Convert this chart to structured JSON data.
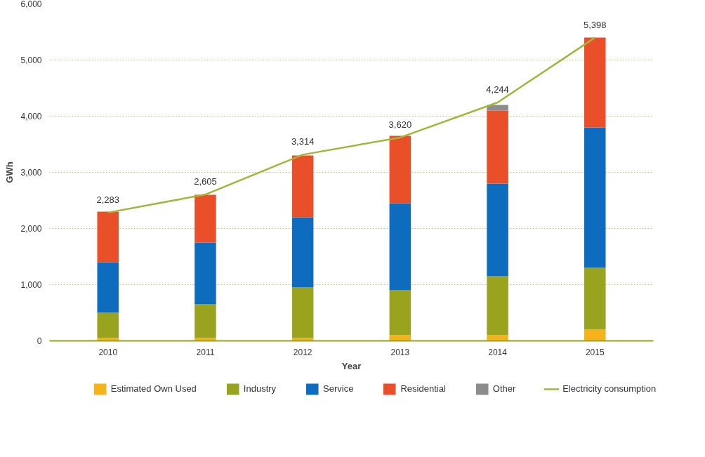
{
  "chart_data": {
    "type": "bar",
    "stacked": true,
    "xlabel": "Year",
    "ylabel": "GWh",
    "categories": [
      "2010",
      "2011",
      "2012",
      "2013",
      "2014",
      "2015"
    ],
    "series": [
      {
        "name": "Estimated Own Used",
        "color": "#f5b21a",
        "values": [
          50,
          50,
          50,
          100,
          100,
          200
        ]
      },
      {
        "name": "Industry",
        "color": "#9aa31d",
        "values": [
          450,
          600,
          900,
          800,
          1050,
          1100
        ]
      },
      {
        "name": "Service",
        "color": "#0e6cbf",
        "values": [
          900,
          1100,
          1250,
          1550,
          1650,
          2500
        ]
      },
      {
        "name": "Residential",
        "color": "#e9502a",
        "values": [
          900,
          850,
          1100,
          1200,
          1300,
          1600
        ]
      },
      {
        "name": "Other",
        "color": "#8c8c8c",
        "values": [
          0,
          0,
          0,
          0,
          100,
          0
        ]
      },
      {
        "name": "Electricity consumption",
        "type": "line",
        "color": "#a3b53a",
        "values": [
          2283,
          2605,
          3314,
          3620,
          4244,
          5398
        ],
        "value_labels": [
          "2,283",
          "2,605",
          "3,314",
          "3,620",
          "4,244",
          "5,398"
        ]
      }
    ],
    "ylim": [
      0,
      6000
    ],
    "yticks": [
      {
        "value": 0,
        "label": "0"
      },
      {
        "value": 1000,
        "label": "1,000"
      },
      {
        "value": 2000,
        "label": "2,000"
      },
      {
        "value": 3000,
        "label": "3,000"
      },
      {
        "value": 4000,
        "label": "4,000"
      },
      {
        "value": 5000,
        "label": "5,000"
      },
      {
        "value": 6000,
        "label": "6,000"
      }
    ],
    "grid": "y",
    "legend": "bottom",
    "marker": "none",
    "line_style": "solid"
  }
}
